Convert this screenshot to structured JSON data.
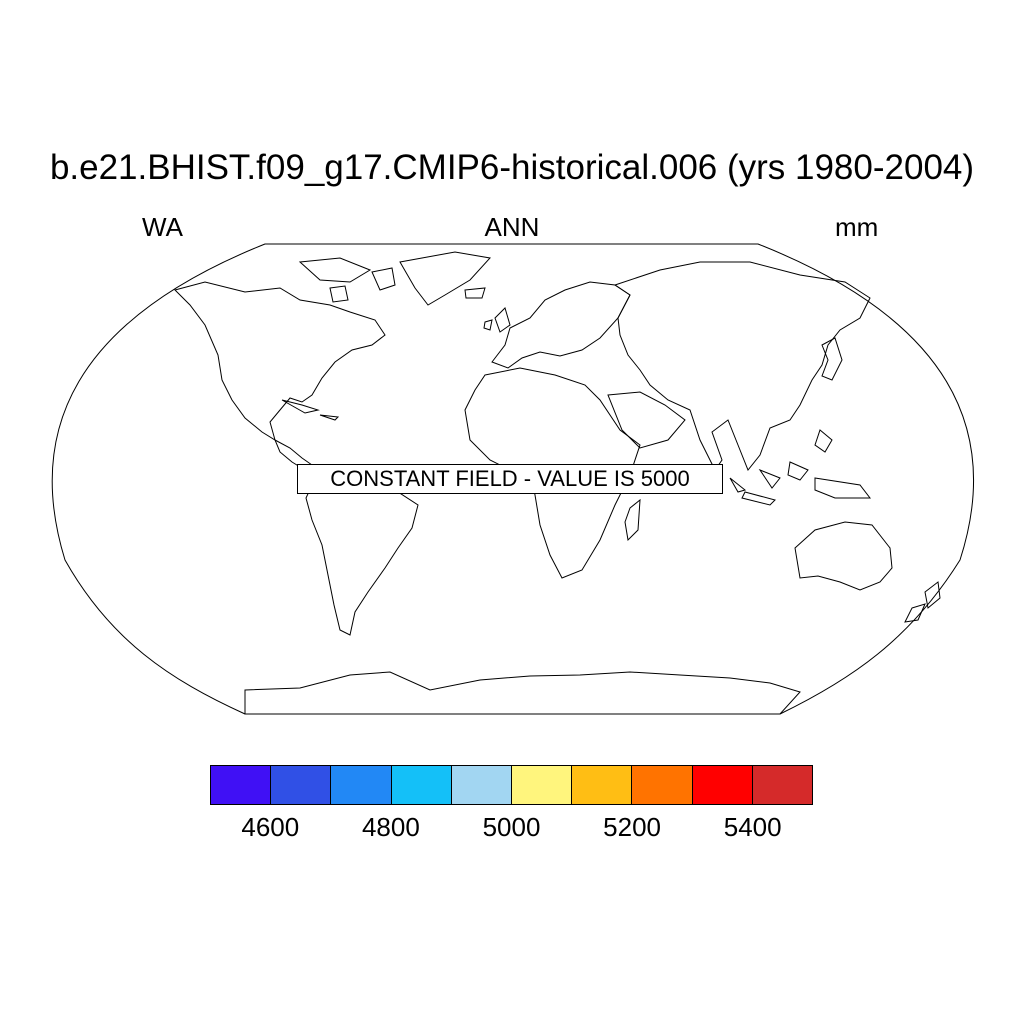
{
  "title": "b.e21.BHIST.f09_g17.CMIP6-historical.006 (yrs 1980-2004)",
  "left_label": "WA",
  "center_label": "ANN",
  "right_label": "mm",
  "note": "CONSTANT FIELD - VALUE IS 5000",
  "map": {
    "projection": "robinson",
    "field_value": 5000
  },
  "colorbar": {
    "colors": [
      "#4010f5",
      "#3050e6",
      "#2288f5",
      "#14c0f8",
      "#a2d6f2",
      "#fff57d",
      "#ffbe14",
      "#ff7300",
      "#ff0000",
      "#d52a2a"
    ],
    "labels": [
      "4600",
      "4800",
      "5000",
      "5200",
      "5400"
    ]
  }
}
